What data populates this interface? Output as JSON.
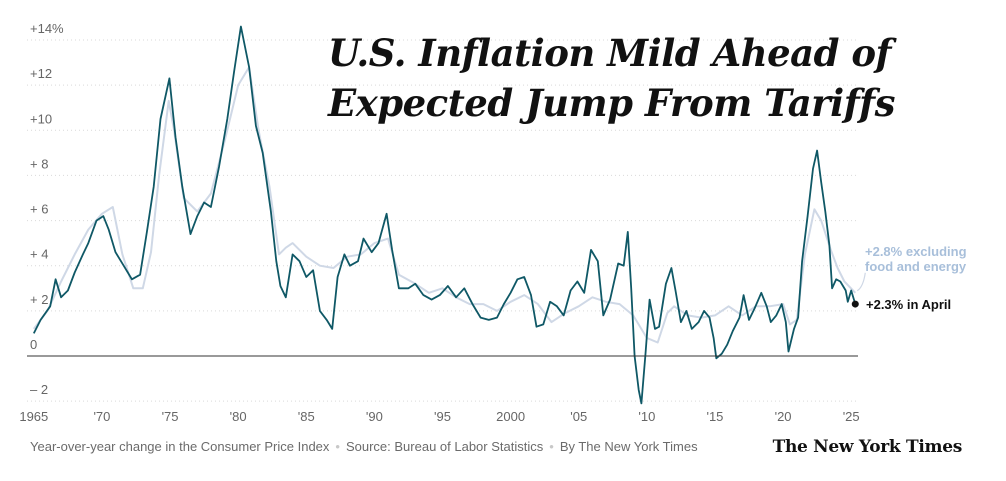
{
  "title": "U.S. Inflation Mild Ahead of Expected Jump From Tariffs",
  "footer": {
    "description": "Year-over-year change in the Consumer Price Index",
    "source": "Source: Bureau of Labor Statistics",
    "credit": "By The New York Times",
    "logo": "The New York Times"
  },
  "colors": {
    "headline": "#0f5866",
    "core": "#cfd8e6",
    "zero_line": "#333333",
    "grid": "#d9d9d9"
  },
  "chart_data": {
    "type": "line",
    "x_ticks": [
      "1965",
      "'70",
      "'75",
      "'80",
      "'85",
      "'90",
      "'95",
      "2000",
      "'05",
      "'10",
      "'15",
      "'20",
      "'25"
    ],
    "y_ticks": [
      "+14%",
      "+12",
      "+10",
      "+ 8",
      "+ 6",
      "+ 4",
      "+ 2",
      "0",
      "– 2"
    ],
    "xlim": [
      1964.5,
      2025.5
    ],
    "ylim": [
      -2.5,
      14.5
    ],
    "grid": true,
    "series": [
      {
        "name": "+2.8% excluding food and energy",
        "label_lines": [
          "+2.8% excluding",
          "food and energy"
        ],
        "color": "#cfd8e6",
        "points": [
          [
            1965.0,
            1.2
          ],
          [
            1966.0,
            2.0
          ],
          [
            1967.0,
            3.3
          ],
          [
            1968.0,
            4.5
          ],
          [
            1969.0,
            5.6
          ],
          [
            1970.0,
            6.3
          ],
          [
            1970.8,
            6.6
          ],
          [
            1971.5,
            4.5
          ],
          [
            1972.3,
            3.0
          ],
          [
            1973.0,
            3.0
          ],
          [
            1973.6,
            4.6
          ],
          [
            1974.2,
            8.0
          ],
          [
            1974.9,
            11.3
          ],
          [
            1975.3,
            10.0
          ],
          [
            1976.0,
            7.0
          ],
          [
            1977.0,
            6.4
          ],
          [
            1978.0,
            7.2
          ],
          [
            1979.0,
            9.5
          ],
          [
            1980.0,
            12.0
          ],
          [
            1980.8,
            12.8
          ],
          [
            1981.5,
            10.0
          ],
          [
            1982.3,
            7.5
          ],
          [
            1983.0,
            4.5
          ],
          [
            1983.5,
            4.8
          ],
          [
            1984.0,
            5.0
          ],
          [
            1985.0,
            4.4
          ],
          [
            1986.0,
            4.0
          ],
          [
            1987.0,
            3.9
          ],
          [
            1988.0,
            4.4
          ],
          [
            1989.0,
            4.5
          ],
          [
            1990.0,
            5.0
          ],
          [
            1991.0,
            5.2
          ],
          [
            1991.8,
            3.6
          ],
          [
            1993.0,
            3.2
          ],
          [
            1994.0,
            2.8
          ],
          [
            1995.0,
            3.0
          ],
          [
            1996.0,
            2.6
          ],
          [
            1997.0,
            2.3
          ],
          [
            1998.0,
            2.3
          ],
          [
            1999.0,
            2.0
          ],
          [
            2000.0,
            2.4
          ],
          [
            2001.0,
            2.7
          ],
          [
            2002.0,
            2.3
          ],
          [
            2003.0,
            1.5
          ],
          [
            2004.0,
            1.9
          ],
          [
            2005.0,
            2.2
          ],
          [
            2006.0,
            2.6
          ],
          [
            2007.0,
            2.4
          ],
          [
            2008.0,
            2.3
          ],
          [
            2009.0,
            1.8
          ],
          [
            2010.0,
            0.8
          ],
          [
            2010.8,
            0.6
          ],
          [
            2011.5,
            1.9
          ],
          [
            2012.0,
            2.2
          ],
          [
            2013.0,
            1.8
          ],
          [
            2014.0,
            1.7
          ],
          [
            2015.0,
            1.8
          ],
          [
            2016.0,
            2.2
          ],
          [
            2017.0,
            1.8
          ],
          [
            2018.0,
            2.2
          ],
          [
            2019.0,
            2.2
          ],
          [
            2020.0,
            2.3
          ],
          [
            2020.5,
            1.4
          ],
          [
            2021.0,
            1.6
          ],
          [
            2021.6,
            4.5
          ],
          [
            2022.3,
            6.5
          ],
          [
            2022.8,
            6.0
          ],
          [
            2023.5,
            4.7
          ],
          [
            2024.0,
            3.9
          ],
          [
            2024.5,
            3.3
          ],
          [
            2025.3,
            2.8
          ]
        ]
      },
      {
        "name": "+2.3% in April",
        "label_lines": [
          "+2.3% in April"
        ],
        "color": "#0f5866",
        "points": [
          [
            1965.0,
            1.0
          ],
          [
            1965.5,
            1.6
          ],
          [
            1966.2,
            2.2
          ],
          [
            1966.6,
            3.4
          ],
          [
            1967.0,
            2.6
          ],
          [
            1967.5,
            2.9
          ],
          [
            1968.0,
            3.7
          ],
          [
            1968.6,
            4.5
          ],
          [
            1969.0,
            5.0
          ],
          [
            1969.6,
            6.0
          ],
          [
            1970.1,
            6.2
          ],
          [
            1970.5,
            5.6
          ],
          [
            1971.0,
            4.6
          ],
          [
            1971.6,
            4.0
          ],
          [
            1972.2,
            3.4
          ],
          [
            1972.8,
            3.6
          ],
          [
            1973.3,
            5.5
          ],
          [
            1973.8,
            7.5
          ],
          [
            1974.3,
            10.5
          ],
          [
            1974.95,
            12.3
          ],
          [
            1975.4,
            9.7
          ],
          [
            1975.9,
            7.5
          ],
          [
            1976.5,
            5.4
          ],
          [
            1977.0,
            6.2
          ],
          [
            1977.5,
            6.8
          ],
          [
            1978.0,
            6.6
          ],
          [
            1978.6,
            8.4
          ],
          [
            1979.2,
            10.5
          ],
          [
            1979.7,
            12.6
          ],
          [
            1980.2,
            14.6
          ],
          [
            1980.8,
            12.8
          ],
          [
            1981.3,
            10.2
          ],
          [
            1981.8,
            9.0
          ],
          [
            1982.4,
            6.4
          ],
          [
            1982.8,
            4.2
          ],
          [
            1983.1,
            3.1
          ],
          [
            1983.5,
            2.6
          ],
          [
            1984.0,
            4.5
          ],
          [
            1984.5,
            4.2
          ],
          [
            1985.0,
            3.5
          ],
          [
            1985.5,
            3.8
          ],
          [
            1986.0,
            2.0
          ],
          [
            1986.5,
            1.6
          ],
          [
            1986.9,
            1.2
          ],
          [
            1987.3,
            3.5
          ],
          [
            1987.8,
            4.5
          ],
          [
            1988.2,
            4.0
          ],
          [
            1988.8,
            4.2
          ],
          [
            1989.2,
            5.2
          ],
          [
            1989.8,
            4.6
          ],
          [
            1990.3,
            5.0
          ],
          [
            1990.9,
            6.3
          ],
          [
            1991.3,
            4.7
          ],
          [
            1991.8,
            3.0
          ],
          [
            1992.5,
            3.0
          ],
          [
            1993.0,
            3.2
          ],
          [
            1993.6,
            2.7
          ],
          [
            1994.2,
            2.5
          ],
          [
            1994.8,
            2.7
          ],
          [
            1995.4,
            3.1
          ],
          [
            1996.0,
            2.6
          ],
          [
            1996.6,
            3.0
          ],
          [
            1997.2,
            2.3
          ],
          [
            1997.8,
            1.7
          ],
          [
            1998.4,
            1.6
          ],
          [
            1999.0,
            1.7
          ],
          [
            1999.5,
            2.3
          ],
          [
            2000.0,
            2.8
          ],
          [
            2000.5,
            3.4
          ],
          [
            2001.0,
            3.5
          ],
          [
            2001.5,
            2.7
          ],
          [
            2001.9,
            1.3
          ],
          [
            2002.4,
            1.4
          ],
          [
            2002.9,
            2.4
          ],
          [
            2003.4,
            2.2
          ],
          [
            2003.9,
            1.8
          ],
          [
            2004.4,
            2.9
          ],
          [
            2004.9,
            3.3
          ],
          [
            2005.4,
            2.8
          ],
          [
            2005.9,
            4.7
          ],
          [
            2006.4,
            4.2
          ],
          [
            2006.8,
            1.8
          ],
          [
            2007.3,
            2.5
          ],
          [
            2007.9,
            4.1
          ],
          [
            2008.3,
            4.0
          ],
          [
            2008.6,
            5.5
          ],
          [
            2008.85,
            3.0
          ],
          [
            2009.1,
            0.0
          ],
          [
            2009.4,
            -1.5
          ],
          [
            2009.6,
            -2.1
          ],
          [
            2009.9,
            0.1
          ],
          [
            2010.2,
            2.5
          ],
          [
            2010.6,
            1.2
          ],
          [
            2010.9,
            1.3
          ],
          [
            2011.4,
            3.2
          ],
          [
            2011.8,
            3.9
          ],
          [
            2012.1,
            2.9
          ],
          [
            2012.5,
            1.5
          ],
          [
            2012.9,
            2.0
          ],
          [
            2013.3,
            1.2
          ],
          [
            2013.8,
            1.5
          ],
          [
            2014.2,
            2.0
          ],
          [
            2014.6,
            1.7
          ],
          [
            2014.9,
            0.8
          ],
          [
            2015.1,
            -0.1
          ],
          [
            2015.5,
            0.1
          ],
          [
            2015.9,
            0.5
          ],
          [
            2016.3,
            1.1
          ],
          [
            2016.8,
            1.7
          ],
          [
            2017.1,
            2.7
          ],
          [
            2017.5,
            1.6
          ],
          [
            2017.9,
            2.1
          ],
          [
            2018.4,
            2.8
          ],
          [
            2018.8,
            2.2
          ],
          [
            2019.1,
            1.5
          ],
          [
            2019.5,
            1.8
          ],
          [
            2019.9,
            2.3
          ],
          [
            2020.2,
            1.5
          ],
          [
            2020.4,
            0.2
          ],
          [
            2020.8,
            1.2
          ],
          [
            2021.1,
            1.7
          ],
          [
            2021.4,
            4.2
          ],
          [
            2021.8,
            6.2
          ],
          [
            2022.2,
            8.3
          ],
          [
            2022.5,
            9.1
          ],
          [
            2022.8,
            7.7
          ],
          [
            2023.1,
            6.4
          ],
          [
            2023.4,
            4.9
          ],
          [
            2023.6,
            3.0
          ],
          [
            2023.9,
            3.4
          ],
          [
            2024.2,
            3.3
          ],
          [
            2024.6,
            2.9
          ],
          [
            2024.75,
            2.4
          ],
          [
            2025.0,
            2.9
          ],
          [
            2025.3,
            2.3
          ]
        ]
      }
    ]
  }
}
